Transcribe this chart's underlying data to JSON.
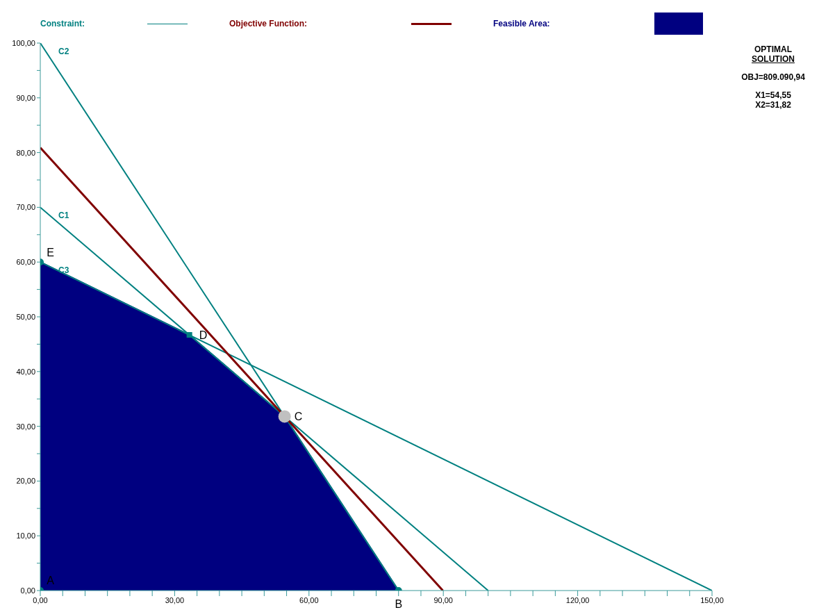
{
  "chart_data": {
    "type": "line",
    "title": "OPTIMAL SOLUTION",
    "legend": "top",
    "grid": false,
    "xlim": [
      0,
      150
    ],
    "ylim": [
      0,
      100
    ],
    "xticks": [
      {
        "value": 0,
        "label": "0,00"
      },
      {
        "value": 5,
        "label": null
      },
      {
        "value": 10,
        "label": null
      },
      {
        "value": 15,
        "label": null
      },
      {
        "value": 20,
        "label": null
      },
      {
        "value": 25,
        "label": null
      },
      {
        "value": 30,
        "label": "30,00"
      },
      {
        "value": 35,
        "label": null
      },
      {
        "value": 40,
        "label": null
      },
      {
        "value": 45,
        "label": null
      },
      {
        "value": 50,
        "label": null
      },
      {
        "value": 55,
        "label": null
      },
      {
        "value": 60,
        "label": "60,00"
      },
      {
        "value": 65,
        "label": null
      },
      {
        "value": 70,
        "label": null
      },
      {
        "value": 75,
        "label": null
      },
      {
        "value": 80,
        "label": null
      },
      {
        "value": 85,
        "label": null
      },
      {
        "value": 90,
        "label": "90,00"
      },
      {
        "value": 95,
        "label": null
      },
      {
        "value": 100,
        "label": null
      },
      {
        "value": 105,
        "label": null
      },
      {
        "value": 110,
        "label": null
      },
      {
        "value": 115,
        "label": null
      },
      {
        "value": 120,
        "label": "120,00"
      },
      {
        "value": 125,
        "label": null
      },
      {
        "value": 130,
        "label": null
      },
      {
        "value": 135,
        "label": null
      },
      {
        "value": 140,
        "label": null
      },
      {
        "value": 145,
        "label": null
      },
      {
        "value": 150,
        "label": "150,00"
      }
    ],
    "yticks": [
      {
        "value": 0,
        "label": "0,00"
      },
      {
        "value": 5,
        "label": null
      },
      {
        "value": 10,
        "label": "10,00"
      },
      {
        "value": 15,
        "label": null
      },
      {
        "value": 20,
        "label": "20,00"
      },
      {
        "value": 25,
        "label": null
      },
      {
        "value": 30,
        "label": "30,00"
      },
      {
        "value": 35,
        "label": null
      },
      {
        "value": 40,
        "label": "40,00"
      },
      {
        "value": 45,
        "label": null
      },
      {
        "value": 50,
        "label": "50,00"
      },
      {
        "value": 55,
        "label": null
      },
      {
        "value": 60,
        "label": "60,00"
      },
      {
        "value": 65,
        "label": null
      },
      {
        "value": 70,
        "label": "70,00"
      },
      {
        "value": 75,
        "label": null
      },
      {
        "value": 80,
        "label": "80,00"
      },
      {
        "value": 85,
        "label": null
      },
      {
        "value": 90,
        "label": "90,00"
      },
      {
        "value": 95,
        "label": null
      },
      {
        "value": 100,
        "label": "100,00"
      }
    ],
    "series": [
      {
        "name": "C1",
        "color": "#008080",
        "x": [
          0,
          100
        ],
        "values": [
          70,
          0
        ]
      },
      {
        "name": "C2",
        "color": "#008080",
        "x": [
          0,
          80
        ],
        "values": [
          100,
          0
        ]
      },
      {
        "name": "C3",
        "color": "#008080",
        "x": [
          0,
          150
        ],
        "values": [
          60,
          0
        ]
      },
      {
        "name": "Objective Function:",
        "color": "#800000",
        "x": [
          0,
          89.9
        ],
        "values": [
          80.9,
          0
        ]
      },
      {
        "type": "area",
        "name": "Feasible Area:",
        "color": "#000080",
        "x": [
          0,
          33.3,
          54.55,
          80
        ],
        "values": [
          60,
          46.7,
          31.8,
          0
        ]
      },
      {
        "type": "scatter",
        "color": "#008080",
        "marker": "circle",
        "x": [
          0,
          80,
          0
        ],
        "values": [
          0,
          0,
          60
        ]
      },
      {
        "type": "scatter",
        "color": "#008080",
        "marker": "square",
        "x": [
          33.3
        ],
        "values": [
          46.7
        ]
      },
      {
        "type": "scatter",
        "color": "#c0c0c0",
        "marker": "circle",
        "x": [
          54.55
        ],
        "values": [
          31.8
        ]
      }
    ],
    "annotations": [
      "Constraint:",
      "OBJ=809.090,94",
      "X1=54,55",
      "X2=31,82",
      {
        "text": "A",
        "x": 0,
        "y": 0
      },
      {
        "text": "B",
        "x": 80,
        "y": 0
      },
      {
        "text": "C",
        "x": 54.55,
        "y": 31.8
      },
      {
        "text": "D",
        "x": 33.3,
        "y": 46.7
      },
      {
        "text": "E",
        "x": 0,
        "y": 60
      }
    ]
  }
}
